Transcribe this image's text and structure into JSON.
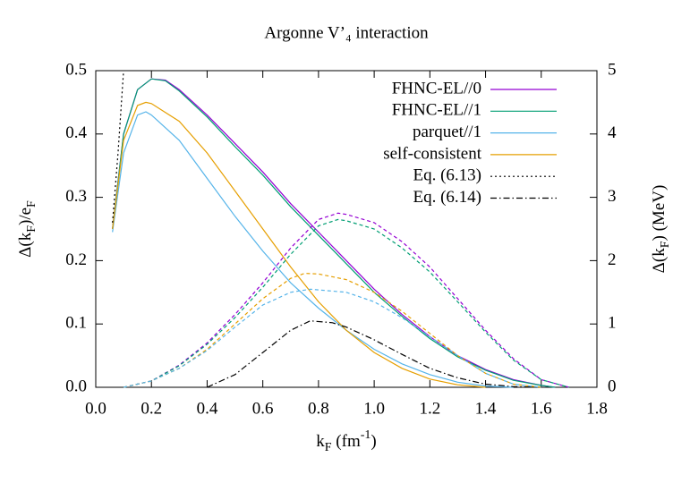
{
  "chart_data": {
    "type": "line",
    "title": "Argonne V’₄ interaction",
    "xlabel": [
      "k",
      "F",
      "  (fm",
      "-1",
      ")"
    ],
    "ylabel": [
      "Δ(k",
      "F",
      ")/e",
      "F"
    ],
    "y2label": [
      "Δ(k",
      "F",
      ")  (MeV)"
    ],
    "xlim": [
      0,
      1.8
    ],
    "xticks": [
      {
        "value": 0,
        "label": "0.0"
      },
      0.2,
      0.4,
      0.6,
      0.8,
      {
        "value": 1,
        "label": "1.0"
      },
      1.2,
      1.4,
      1.6,
      1.8
    ],
    "ylim": [
      0,
      0.5
    ],
    "yticks": [
      {
        "value": 0,
        "label": "0.0"
      },
      0.1,
      0.2,
      0.3,
      0.4,
      0.5
    ],
    "y2lim": [
      0,
      5
    ],
    "y2ticks": [
      0,
      1,
      2,
      3,
      4,
      5
    ],
    "legend": "top-right",
    "series": [
      {
        "name": "FHNC-EL//0",
        "color": "#9400d3",
        "dash": "solid",
        "x": [
          0.06,
          0.1,
          0.15,
          0.2,
          0.25,
          0.3,
          0.4,
          0.5,
          0.6,
          0.7,
          0.8,
          0.9,
          1.0,
          1.1,
          1.2,
          1.3,
          1.4,
          1.5,
          1.6,
          1.65
        ],
        "values": [
          0.25,
          0.4,
          0.47,
          0.487,
          0.485,
          0.47,
          0.43,
          0.385,
          0.34,
          0.29,
          0.245,
          0.2,
          0.155,
          0.115,
          0.08,
          0.05,
          0.028,
          0.012,
          0.003,
          0
        ]
      },
      {
        "name": "FHNC-EL//1",
        "color": "#009e73",
        "dash": "solid",
        "x": [
          0.06,
          0.1,
          0.15,
          0.2,
          0.25,
          0.3,
          0.4,
          0.5,
          0.6,
          0.7,
          0.8,
          0.9,
          1.0,
          1.1,
          1.2,
          1.3,
          1.4,
          1.5,
          1.6,
          1.65
        ],
        "values": [
          0.25,
          0.4,
          0.47,
          0.487,
          0.484,
          0.468,
          0.427,
          0.38,
          0.335,
          0.285,
          0.24,
          0.195,
          0.15,
          0.112,
          0.077,
          0.048,
          0.027,
          0.011,
          0.003,
          0
        ]
      },
      {
        "name": "parquet//1",
        "color": "#56b4e9",
        "dash": "solid",
        "x": [
          0.06,
          0.1,
          0.15,
          0.18,
          0.2,
          0.3,
          0.4,
          0.5,
          0.6,
          0.7,
          0.8,
          0.9,
          1.0,
          1.1,
          1.2,
          1.3,
          1.4,
          1.5
        ],
        "values": [
          0.245,
          0.37,
          0.43,
          0.435,
          0.43,
          0.39,
          0.33,
          0.27,
          0.215,
          0.165,
          0.125,
          0.09,
          0.06,
          0.037,
          0.02,
          0.008,
          0.002,
          0
        ]
      },
      {
        "name": "self-consistent",
        "color": "#e69f00",
        "dash": "solid",
        "x": [
          0.06,
          0.1,
          0.15,
          0.18,
          0.2,
          0.3,
          0.4,
          0.5,
          0.6,
          0.7,
          0.8,
          0.9,
          1.0,
          1.1,
          1.2,
          1.3,
          1.4
        ],
        "values": [
          0.25,
          0.39,
          0.445,
          0.45,
          0.448,
          0.42,
          0.37,
          0.31,
          0.25,
          0.19,
          0.135,
          0.09,
          0.055,
          0.03,
          0.013,
          0.004,
          0
        ]
      },
      {
        "name": "Eq. (6.13)",
        "color": "#000000",
        "dash": "dotted",
        "x": [
          0.06,
          0.08,
          0.1
        ],
        "values": [
          0.26,
          0.37,
          0.5
        ]
      },
      {
        "name": "Eq. (6.14)",
        "color": "#000000",
        "dash": "dashdot",
        "axis": "y2",
        "x": [
          0.4,
          0.5,
          0.6,
          0.7,
          0.77,
          0.85,
          0.9,
          1.0,
          1.1,
          1.2,
          1.3,
          1.4,
          1.5,
          1.6
        ],
        "values": [
          0,
          0.2,
          0.55,
          0.9,
          1.05,
          1.02,
          0.95,
          0.75,
          0.52,
          0.3,
          0.15,
          0.05,
          0.01,
          0
        ]
      },
      {
        "color": "#9400d3",
        "dash": "dashed",
        "axis": "y2",
        "x": [
          0.1,
          0.2,
          0.3,
          0.4,
          0.5,
          0.6,
          0.7,
          0.8,
          0.87,
          0.9,
          1.0,
          1.1,
          1.2,
          1.3,
          1.4,
          1.5,
          1.6,
          1.7
        ],
        "values": [
          0,
          0.1,
          0.35,
          0.7,
          1.15,
          1.65,
          2.2,
          2.65,
          2.75,
          2.73,
          2.6,
          2.3,
          1.9,
          1.4,
          0.9,
          0.45,
          0.12,
          0
        ]
      },
      {
        "color": "#009e73",
        "dash": "dashed",
        "axis": "y2",
        "x": [
          0.1,
          0.2,
          0.3,
          0.4,
          0.5,
          0.6,
          0.7,
          0.8,
          0.87,
          0.9,
          1.0,
          1.1,
          1.2,
          1.3,
          1.4,
          1.5,
          1.6,
          1.7
        ],
        "values": [
          0,
          0.1,
          0.34,
          0.68,
          1.1,
          1.58,
          2.1,
          2.55,
          2.65,
          2.63,
          2.5,
          2.2,
          1.82,
          1.35,
          0.87,
          0.43,
          0.12,
          0
        ]
      },
      {
        "color": "#e69f00",
        "dash": "dashed",
        "axis": "y2",
        "x": [
          0.1,
          0.2,
          0.3,
          0.4,
          0.5,
          0.6,
          0.7,
          0.75,
          0.8,
          0.9,
          1.0,
          1.1,
          1.2,
          1.3,
          1.4,
          1.5,
          1.6
        ],
        "values": [
          0,
          0.1,
          0.3,
          0.6,
          1.0,
          1.4,
          1.72,
          1.8,
          1.79,
          1.7,
          1.5,
          1.2,
          0.85,
          0.5,
          0.22,
          0.05,
          0
        ]
      },
      {
        "color": "#56b4e9",
        "dash": "dashed",
        "axis": "y2",
        "x": [
          0.1,
          0.2,
          0.3,
          0.4,
          0.5,
          0.6,
          0.7,
          0.77,
          0.9,
          1.0,
          1.1,
          1.2,
          1.3,
          1.4,
          1.5,
          1.6
        ],
        "values": [
          0,
          0.1,
          0.3,
          0.58,
          0.95,
          1.3,
          1.5,
          1.55,
          1.5,
          1.35,
          1.1,
          0.8,
          0.5,
          0.22,
          0.05,
          0
        ]
      }
    ]
  }
}
